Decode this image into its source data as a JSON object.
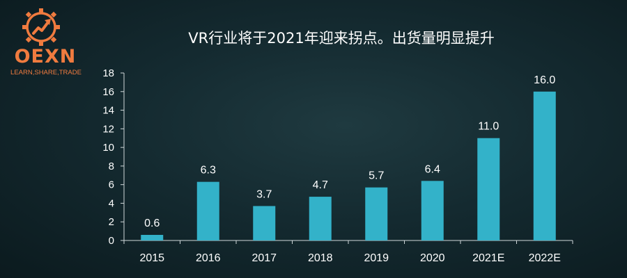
{
  "logo": {
    "wordmark": "OEXN",
    "tagline": "LEARN,SHARE,TRADE",
    "color": "#f07b3f",
    "icon": "trend-arrow-gear-icon"
  },
  "chart_data": {
    "type": "bar",
    "title": "VR行业将于2021年迎来拐点。出货量明显提升",
    "xlabel": "",
    "ylabel": "",
    "categories": [
      "2015",
      "2016",
      "2017",
      "2018",
      "2019",
      "2020",
      "2021E",
      "2022E"
    ],
    "values": [
      0.6,
      6.3,
      3.7,
      4.7,
      5.7,
      6.4,
      11.0,
      16.0
    ],
    "value_labels": [
      "0.6",
      "6.3",
      "3.7",
      "4.7",
      "5.7",
      "6.4",
      "11.0",
      "16.0"
    ],
    "ylim": [
      0,
      18
    ],
    "yticks": [
      "0",
      "2",
      "4",
      "6",
      "8",
      "10",
      "12",
      "14",
      "16",
      "18"
    ],
    "grid": false,
    "bar_color": "#33b2c9",
    "text_color": "#ffffff",
    "axis_color": "#d0d8da"
  }
}
